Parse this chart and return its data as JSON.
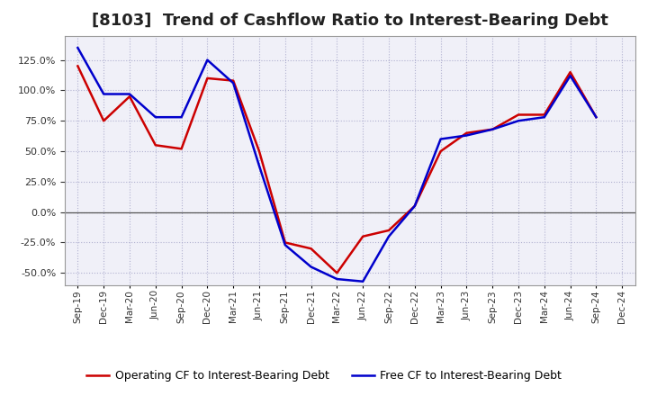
{
  "title": "[8103]  Trend of Cashflow Ratio to Interest-Bearing Debt",
  "x_labels": [
    "Sep-19",
    "Dec-19",
    "Mar-20",
    "Jun-20",
    "Sep-20",
    "Dec-20",
    "Mar-21",
    "Jun-21",
    "Sep-21",
    "Dec-21",
    "Mar-22",
    "Jun-22",
    "Sep-22",
    "Dec-22",
    "Mar-23",
    "Jun-23",
    "Sep-23",
    "Dec-23",
    "Mar-24",
    "Jun-24",
    "Sep-24",
    "Dec-24"
  ],
  "operating_cf": [
    120,
    75,
    95,
    55,
    52,
    110,
    108,
    50,
    -25,
    -30,
    -50,
    -20,
    -15,
    5,
    50,
    65,
    68,
    80,
    80,
    115,
    78,
    null
  ],
  "free_cf": [
    135,
    97,
    97,
    78,
    78,
    125,
    106,
    38,
    -27,
    -45,
    -55,
    -57,
    -20,
    5,
    60,
    63,
    68,
    75,
    78,
    112,
    78,
    null
  ],
  "operating_color": "#cc0000",
  "free_color": "#0000cc",
  "ylim": [
    -60,
    145
  ],
  "yticks": [
    -50,
    -25,
    0,
    25,
    50,
    75,
    100,
    125
  ],
  "bg_color": "#ffffff",
  "plot_bg": "#f0f0f8",
  "grid_color": "#aaaacc",
  "zero_line_color": "#555555",
  "legend_op": "Operating CF to Interest-Bearing Debt",
  "legend_free": "Free CF to Interest-Bearing Debt",
  "title_fontsize": 13,
  "legend_fontsize": 9,
  "tick_fontsize": 8
}
